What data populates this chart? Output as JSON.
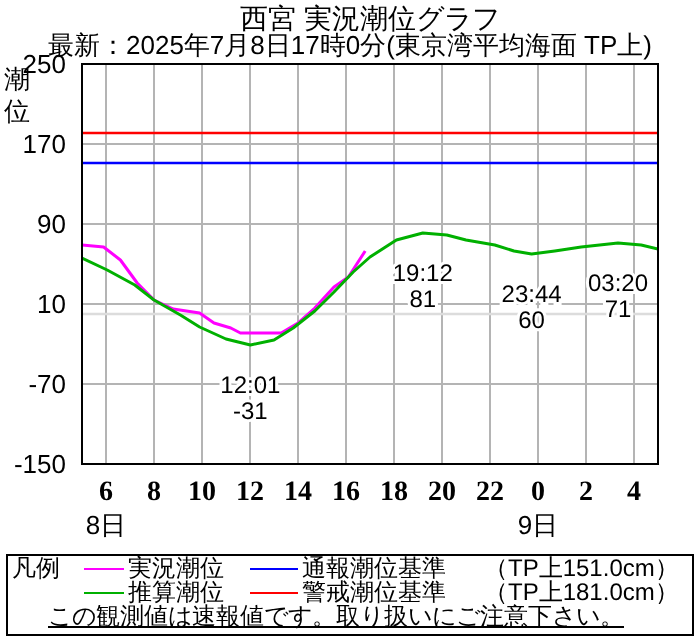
{
  "chart_data": {
    "type": "line",
    "title": "西宮 実況潮位グラフ",
    "subtitle": "最新：2025年7月8日17時0分(東京湾平均海面 TP上)",
    "ylabel": "潮位",
    "legend_title": "凡例",
    "legend": "bottom",
    "grid": true,
    "marker": "none",
    "line_style": "solid",
    "xlim": [
      "2025-07-08T05:00",
      "2025-07-09T05:00"
    ],
    "xticks": [
      {
        "value": "2025-07-08T06:00",
        "label": "6"
      },
      {
        "value": "2025-07-08T08:00",
        "label": "8"
      },
      {
        "value": "2025-07-08T10:00",
        "label": "10"
      },
      {
        "value": "2025-07-08T12:00",
        "label": "12"
      },
      {
        "value": "2025-07-08T14:00",
        "label": "14"
      },
      {
        "value": "2025-07-08T16:00",
        "label": "16"
      },
      {
        "value": "2025-07-08T18:00",
        "label": "18"
      },
      {
        "value": "2025-07-08T20:00",
        "label": "20"
      },
      {
        "value": "2025-07-08T22:00",
        "label": "22"
      },
      {
        "value": "2025-07-09T00:00",
        "label": "0"
      },
      {
        "value": "2025-07-09T02:00",
        "label": "2"
      },
      {
        "value": "2025-07-09T04:00",
        "label": "4"
      }
    ],
    "ylim": [
      -150,
      250
    ],
    "yticks": [
      -150,
      -70,
      10,
      90,
      170,
      250
    ],
    "series": [
      {
        "name": "実況潮位",
        "color": "#ff00ff",
        "x": [
          "2025-07-08T05:00",
          "2025-07-08T05:54",
          "2025-07-08T06:36",
          "2025-07-08T07:18",
          "2025-07-08T08:00",
          "2025-07-08T08:48",
          "2025-07-08T09:54",
          "2025-07-08T10:30",
          "2025-07-08T11:12",
          "2025-07-08T11:36",
          "2025-07-08T13:18",
          "2025-07-08T14:00",
          "2025-07-08T14:42",
          "2025-07-08T15:30",
          "2025-07-08T16:06",
          "2025-07-08T16:48"
        ],
        "values": [
          69,
          67,
          54,
          31,
          14,
          5,
          1,
          -9,
          -14,
          -19,
          -19,
          -9,
          6,
          27,
          37,
          63
        ]
      },
      {
        "name": "推算潮位",
        "color": "#00b000",
        "x": [
          "2025-07-08T05:00",
          "2025-07-08T06:03",
          "2025-07-08T07:12",
          "2025-07-08T08:00",
          "2025-07-08T09:06",
          "2025-07-08T09:54",
          "2025-07-08T11:00",
          "2025-07-08T12:01",
          "2025-07-08T13:00",
          "2025-07-08T13:48",
          "2025-07-08T14:42",
          "2025-07-08T15:30",
          "2025-07-08T16:18",
          "2025-07-08T17:00",
          "2025-07-08T18:06",
          "2025-07-08T19:12",
          "2025-07-08T20:12",
          "2025-07-08T21:00",
          "2025-07-08T22:12",
          "2025-07-08T23:00",
          "2025-07-08T23:44",
          "2025-07-09T00:42",
          "2025-07-09T01:48",
          "2025-07-09T03:20",
          "2025-07-09T04:18",
          "2025-07-09T05:00"
        ],
        "values": [
          56,
          44,
          29,
          14,
          -1,
          -13,
          -25,
          -31,
          -26,
          -14,
          3,
          22,
          42,
          57,
          74,
          81,
          79,
          74,
          69,
          63,
          60,
          63,
          67,
          71,
          69,
          65
        ]
      }
    ],
    "ref_lines": [
      {
        "axis": "y",
        "value": 151,
        "label": "通報潮位基準",
        "color": "#0000ff"
      },
      {
        "axis": "y",
        "value": 181,
        "label": "警戒潮位基準",
        "color": "#ff0000"
      },
      {
        "axis": "y",
        "value": 0,
        "color": "#dcdcdc"
      }
    ],
    "annotations": [
      {
        "text": "12:01\n-31",
        "x": "2025-07-08T12:01",
        "y": -31
      },
      {
        "text": "19:12\n81",
        "x": "2025-07-08T19:12",
        "y": 81
      },
      {
        "text": "23:44\n60",
        "x": "2025-07-08T23:44",
        "y": 60
      },
      {
        "text": "03:20\n71",
        "x": "2025-07-09T03:20",
        "y": 71
      },
      "8日",
      "9日",
      "（TP上151.0cm）",
      "（TP上181.0cm）",
      "この観測値は速報値です。取り扱いにご注意下さい。"
    ]
  }
}
